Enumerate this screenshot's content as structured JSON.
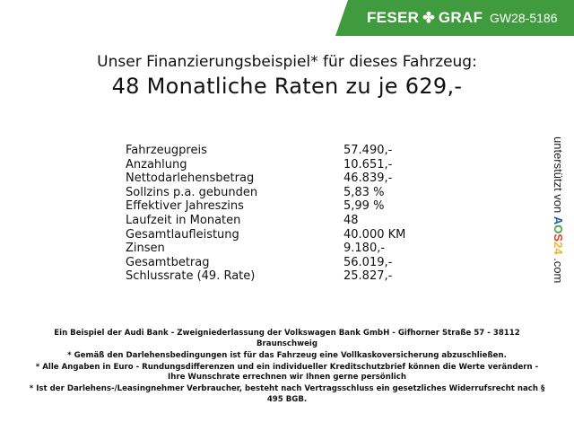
{
  "banner": {
    "brand_left": "FESER",
    "brand_right": "GRAF",
    "plate": "GW28-5186",
    "color": "#3f9b3d"
  },
  "heading": {
    "line1": "Unser Finanzierungsbeispiel* für dieses Fahrzeug:",
    "line2": "48 Monatliche Raten zu je 629,-"
  },
  "table": [
    {
      "label": "Fahrzeugpreis",
      "value": "57.490,-"
    },
    {
      "label": "Anzahlung",
      "value": "10.651,-"
    },
    {
      "label": "Nettodarlehensbetrag",
      "value": "46.839,-"
    },
    {
      "label": "Sollzins p.a. gebunden",
      "value": "5,83 %"
    },
    {
      "label": "Effektiver Jahreszins",
      "value": "5,99 %"
    },
    {
      "label": "Laufzeit in Monaten",
      "value": "48"
    },
    {
      "label": "Gesamtlaufleistung",
      "value": "40.000 KM"
    },
    {
      "label": "Zinsen",
      "value": "9.180,-"
    },
    {
      "label": "Gesamtbetrag",
      "value": "56.019,-"
    },
    {
      "label": "Schlussrate (49. Rate)",
      "value": "25.827,-"
    }
  ],
  "side": {
    "prefix": "unterstützt von",
    "logo_a": "A",
    "logo_o": "O",
    "logo_s": "S",
    "logo_n": "24",
    "suffix": ".com"
  },
  "footer": [
    "Ein Beispiel der Audi Bank - Zweigniederlassung der Volkswagen Bank GmbH - Gifhorner Straße 57 - 38112 Braunschweig",
    "* Gemäß den Darlehensbedingungen ist für das Fahrzeug eine Vollkaskoversicherung abzuschließen.",
    "* Alle Angaben in Euro - Rundungsdifferenzen und ein individueller Kreditschutzbrief können die Werte verändern - Ihre Wunschrate errechnen wir Ihnen gerne persönlich",
    "* Ist der Darlehens-/Leasingnehmer Verbraucher, besteht nach Vertragsschluss ein gesetzliches Widerrufsrecht nach § 495 BGB."
  ]
}
